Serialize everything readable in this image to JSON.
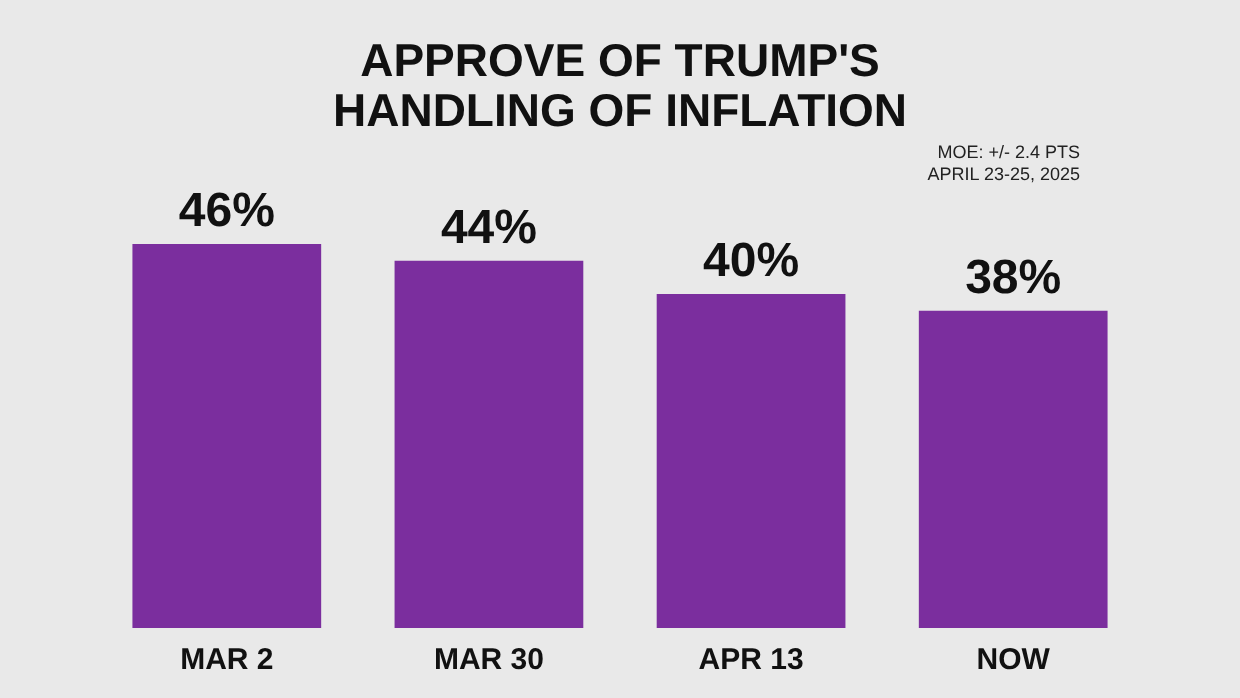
{
  "chart_data": {
    "type": "bar",
    "title": "APPROVE OF TRUMP'S HANDLING OF INFLATION",
    "annotations": [
      "MOE: +/- 2.4 PTS",
      "APRIL 23-25, 2025"
    ],
    "categories": [
      "MAR 2",
      "MAR 30",
      "APR 13",
      "NOW"
    ],
    "values": [
      46,
      44,
      40,
      38
    ],
    "value_labels": [
      "46%",
      "44%",
      "40%",
      "38%"
    ],
    "color": "#7b2e9e"
  }
}
